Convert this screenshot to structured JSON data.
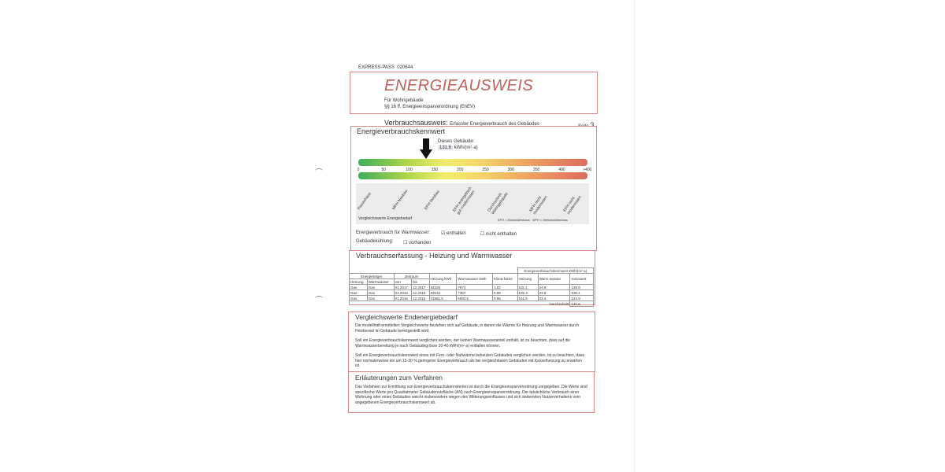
{
  "header": {
    "pass_label": "EXPRESS-PASS",
    "pass_number": "020644",
    "title": "ENERGIEAUSWEIS",
    "subtitle1": "Für Wohngebäude",
    "subtitle2": "§§ 16 ff. Energieeinsparverordnung (EnEV)"
  },
  "section": {
    "title": "Verbrauchsausweis:",
    "subtitle": "Erfasster Energieverbrauch des Gebäudes",
    "page_label": "Seite",
    "page_number": "3"
  },
  "kennwert": {
    "title": "Energieverbrauchskennwert",
    "this_building_label": "Dieses Gebäude:",
    "value": "131.6",
    "unit": "kWh/(m²·a)",
    "scale": [
      "0",
      "50",
      "100",
      "150",
      "200",
      "250",
      "300",
      "350",
      "400",
      ">400"
    ],
    "categories": [
      "Passivhaus",
      "MFH Neubau",
      "EFH Neubau",
      "EFH energetisch\ngut modernisiert",
      "Durchschnitt\nWohngebäude",
      "MFH nicht\nmodernisiert",
      "EFH nicht\nmodernisiert"
    ],
    "compare_label": "Vergleichswerte Energiebedarf",
    "legend_efh": "EFH = Einfamilienhaus",
    "legend_mfh": "MFH = Mehrfamilienhaus",
    "warmwasser_label": "Energieverbrauch für Warmwasser:",
    "opt_enthalten": "enthalten",
    "opt_nicht": "nicht enthalten",
    "kuehlung_label": "Gebäudekühlung:",
    "opt_vorhanden": "vorhanden",
    "enthalten_checked": true,
    "vorhanden_checked": false
  },
  "table": {
    "title": "Verbrauchserfassung - Heizung und Warmwasser",
    "group_kennwert": "Energieverbrauchskennwert kWh/(m²·a)",
    "group_traeger": "Energieträger",
    "group_zeitraum": "Zeitraum",
    "headers": [
      "Heizung",
      "Warmwasser",
      "von",
      "bis",
      "Heizung kWh",
      "Warmwasser kWh",
      "Klima-faktor",
      "Heizung",
      "Warm-wasser",
      "Kennwert"
    ],
    "rows": [
      [
        "Gas",
        "Gas",
        "01.2017",
        "12.2017",
        "32226",
        "7674",
        "1.02",
        "115.1",
        "24.8",
        "139.9"
      ],
      [
        "Gas",
        "Gas",
        "01.2016",
        "12.2016",
        "33615",
        "7357",
        "0.98",
        "106.3",
        "23.8",
        "130.1"
      ],
      [
        "Gas",
        "Gas",
        "01.2015",
        "12.2015",
        "31581.5",
        "6932.5",
        "0.95",
        "101.5",
        "23.4",
        "124.9"
      ]
    ],
    "avg_label": "Durchschnitt",
    "avg_value": "131.6"
  },
  "vergleich": {
    "title": "Vergleichswerte Endenergiebedarf",
    "p1": "Die modellhaft ermittelten Vergleichswerte beziehen sich auf Gebäude, in denen die Wärme für Heizung und Warmwasser durch Heizkessel im Gebäude bereitgestellt wird.",
    "p2": "Soll ein Energieverbrauchskennwert verglichen werden, der keinen Warmwasseranteil enthält, ist zu beachten, dass auf die Warmwasserbereitung je nach Gebäudegrösse 20-40 kWh/(m²·a) entfallen können.",
    "p3": "Soll ein Energieverbrauchskennwert eines mit Fern- oder Nahwärme beheizten Gebäudes verglichen werden, ist zu beachten, dass hier normalerweise ein um 15-30 % geringerer Energieverbrauch als bei vergleichbaren Gebäuden mit Kesselheizung zu erwarten ist."
  },
  "verfahren": {
    "title": "Erläuterungen zum Verfahren",
    "p1": "Das Verfahren zur Ermittlung von Energieverbrauchskennwerten ist durch die Energieeinsparverordnung vorgegeben. Die Werte sind spezifische Werte pro Quadratmeter Gebäudenutzfläche (AN) nach Energieeinsparverordnung. Der tatsächliche Verbrauch einer Wohnung oder eines Gebäudes weicht insbesondere wegen des Witterungseinflusses und sich ändernden Nutzerverhaltens vom angegebenen Energieverbrauchskennwert ab."
  },
  "colors": {
    "accent": "#c0504d",
    "border": "#d58a86"
  }
}
